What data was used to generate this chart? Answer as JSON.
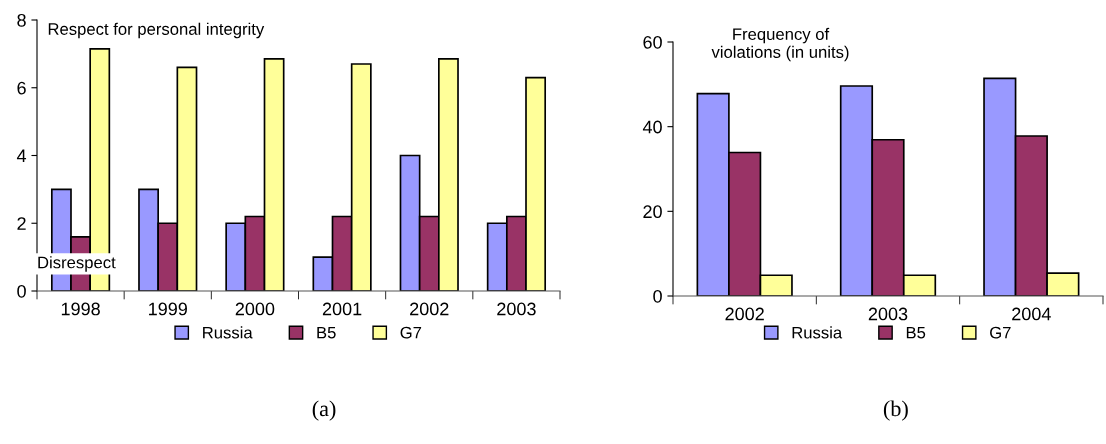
{
  "chart_data": [
    {
      "type": "bar",
      "categories": [
        "1998",
        "1999",
        "2000",
        "2001",
        "2002",
        "2003"
      ],
      "series": [
        {
          "name": "Russia",
          "color": "#9999ff",
          "values": [
            3,
            3,
            2,
            1,
            4,
            2
          ]
        },
        {
          "name": "B5",
          "color": "#993366",
          "values": [
            1.6,
            2,
            2.2,
            2.2,
            2.2,
            2.2
          ]
        },
        {
          "name": "G7",
          "color": "#ffff99",
          "values": [
            7.15,
            6.6,
            6.85,
            6.7,
            6.85,
            6.3
          ]
        }
      ],
      "ylim": [
        0,
        8
      ],
      "yticks": [
        0,
        2,
        4,
        6,
        8
      ],
      "grid": false,
      "legend": "bottom",
      "annotations": [
        "Respect for personal integrity",
        "Disrespect",
        "(a)"
      ]
    },
    {
      "type": "bar",
      "categories": [
        "2002",
        "2003",
        "2004"
      ],
      "series": [
        {
          "name": "Russia",
          "color": "#9999ff",
          "values": [
            47.8,
            49.6,
            51.4
          ]
        },
        {
          "name": "B5",
          "color": "#993366",
          "values": [
            33.9,
            36.9,
            37.8
          ]
        },
        {
          "name": "G7",
          "color": "#ffff99",
          "values": [
            4.9,
            4.9,
            5.4
          ]
        }
      ],
      "ylim": [
        0,
        60
      ],
      "yticks": [
        0,
        20,
        40,
        60
      ],
      "grid": false,
      "legend": "bottom",
      "annotations": [
        "Frequency of\nviolations (in units)",
        "(b)"
      ]
    }
  ]
}
